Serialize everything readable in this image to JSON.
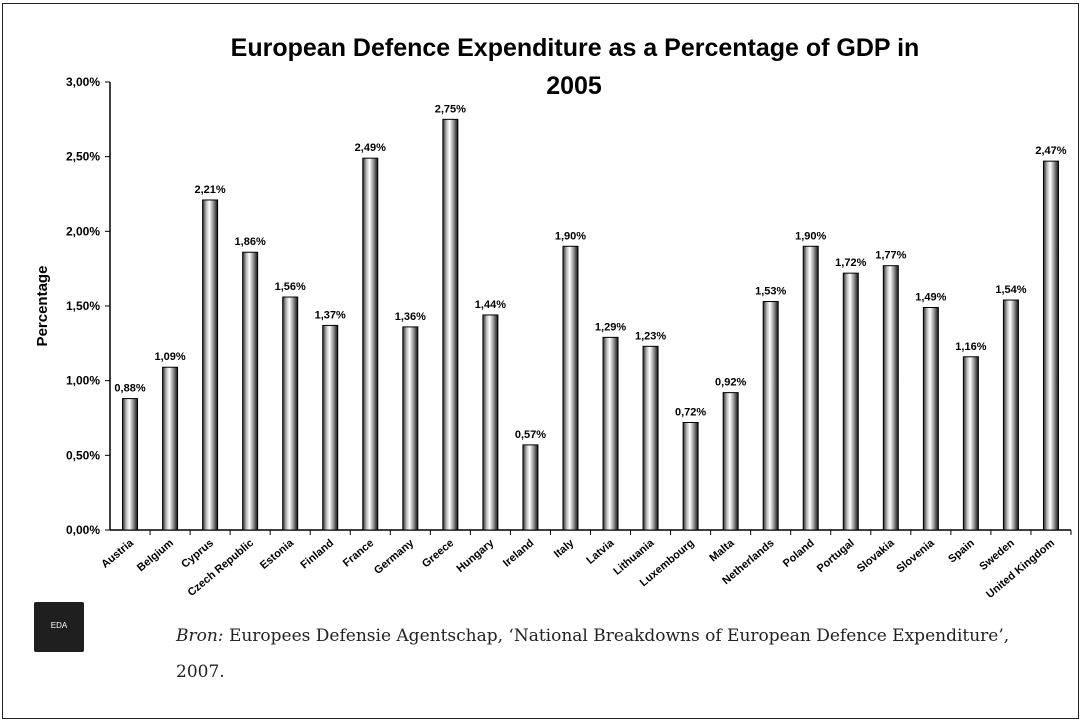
{
  "chart_data": {
    "type": "bar",
    "title": "European Defence Expenditure as a Percentage of GDP in 2005",
    "ylabel": "Percentage",
    "xlabel": "",
    "ylim": [
      0,
      3
    ],
    "yticks": [
      "0,00%",
      "0,50%",
      "1,00%",
      "1,50%",
      "2,00%",
      "2,50%",
      "3,00%"
    ],
    "grid": false,
    "legend": "none",
    "categories": [
      "Austria",
      "Belgium",
      "Cyprus",
      "Czech Republic",
      "Estonia",
      "Finland",
      "France",
      "Germany",
      "Greece",
      "Hungary",
      "Ireland",
      "Italy",
      "Latvia",
      "Lithuania",
      "Luxembourg",
      "Malta",
      "Netherlands",
      "Poland",
      "Portugal",
      "Slovakia",
      "Slovenia",
      "Spain",
      "Sweden",
      "United Kingdom"
    ],
    "values": [
      0.88,
      1.09,
      2.21,
      1.86,
      1.56,
      1.37,
      2.49,
      1.36,
      2.75,
      1.44,
      0.57,
      1.9,
      1.29,
      1.23,
      0.72,
      0.92,
      1.53,
      1.9,
      1.72,
      1.77,
      1.49,
      1.16,
      1.54,
      2.47
    ],
    "value_labels": [
      "0,88%",
      "1,09%",
      "2,21%",
      "1,86%",
      "1,56%",
      "1,37%",
      "2,49%",
      "1,36%",
      "2,75%",
      "1,44%",
      "0,57%",
      "1,90%",
      "1,29%",
      "1,23%",
      "0,72%",
      "0,92%",
      "1,53%",
      "1,90%",
      "1,72%",
      "1,77%",
      "1,49%",
      "1,16%",
      "1,54%",
      "2,47%"
    ]
  },
  "logo": {
    "text": "EDA"
  },
  "source": {
    "label": "Bron:",
    "text": "Europees Defensie Agentschap, ‘National Breakdowns of European Defence Expenditure’, 2007."
  }
}
